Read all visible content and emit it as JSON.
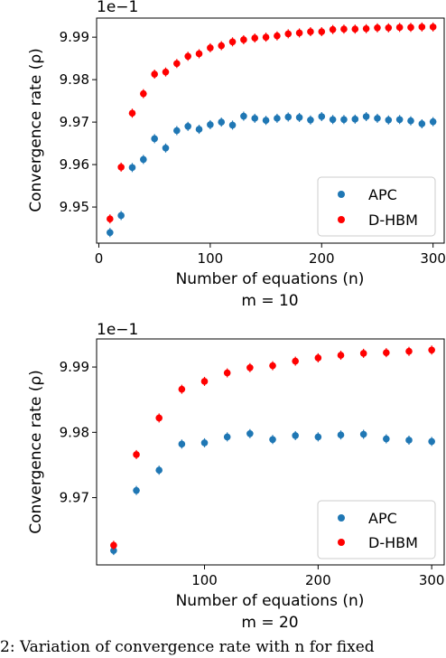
{
  "chart_data": [
    {
      "type": "scatter",
      "xlabel": "Number of equations (n)",
      "ylabel": "Convergence rate (ρ)",
      "subtitle": "m = 10",
      "exponent_label": "1e−1",
      "xlim": [
        -2,
        310
      ],
      "ylim": [
        9.9415,
        9.9945
      ],
      "xticks": [
        "0",
        "100",
        "200",
        "300"
      ],
      "yticks": [
        "9.95",
        "9.96",
        "9.97",
        "9.98",
        "9.99"
      ],
      "legend_position": "lower-right",
      "series": [
        {
          "name": "APC",
          "color": "#1f77b4",
          "x": [
            10,
            20,
            30,
            40,
            50,
            60,
            70,
            80,
            90,
            100,
            110,
            120,
            130,
            140,
            150,
            160,
            170,
            180,
            190,
            200,
            210,
            220,
            230,
            240,
            250,
            260,
            270,
            280,
            290,
            300
          ],
          "y": [
            9.944,
            9.948,
            9.9593,
            9.9612,
            9.9661,
            9.9639,
            9.968,
            9.969,
            9.9683,
            9.9694,
            9.97,
            9.9693,
            9.9714,
            9.9709,
            9.9704,
            9.9709,
            9.9712,
            9.9711,
            9.9705,
            9.9713,
            9.9706,
            9.9706,
            9.9707,
            9.9713,
            9.9709,
            9.9705,
            9.9706,
            9.9703,
            9.9696,
            9.9701
          ]
        },
        {
          "name": "D-HBM",
          "color": "#ff0000",
          "x": [
            10,
            20,
            30,
            40,
            50,
            60,
            70,
            80,
            90,
            100,
            110,
            120,
            130,
            140,
            150,
            160,
            170,
            180,
            190,
            200,
            210,
            220,
            230,
            240,
            250,
            260,
            270,
            280,
            290,
            300
          ],
          "y": [
            9.9472,
            9.9594,
            9.9721,
            9.9767,
            9.9813,
            9.9818,
            9.9838,
            9.9855,
            9.9861,
            9.9875,
            9.988,
            9.9889,
            9.9894,
            9.9898,
            9.99,
            9.9903,
            9.9908,
            9.991,
            9.9913,
            9.9913,
            9.9918,
            9.9919,
            9.9919,
            9.992,
            9.9922,
            9.9922,
            9.9923,
            9.9923,
            9.9924,
            9.9924
          ]
        }
      ]
    },
    {
      "type": "scatter",
      "xlabel": "Number of equations (n)",
      "ylabel": "Convergence rate (ρ)",
      "subtitle": "m = 20",
      "exponent_label": "1e−1",
      "xlim": [
        5,
        311
      ],
      "ylim": [
        9.9597,
        9.9943
      ],
      "xticks": [
        "100",
        "200",
        "300"
      ],
      "yticks": [
        "9.97",
        "9.98",
        "9.99"
      ],
      "legend_position": "lower-right",
      "series": [
        {
          "name": "APC",
          "color": "#1f77b4",
          "x": [
            20,
            40,
            60,
            80,
            100,
            120,
            140,
            160,
            180,
            200,
            220,
            240,
            260,
            280,
            300
          ],
          "y": [
            9.9619,
            9.9711,
            9.9742,
            9.9782,
            9.9784,
            9.9793,
            9.9798,
            9.9789,
            9.9795,
            9.9793,
            9.9796,
            9.9797,
            9.979,
            9.9788,
            9.9786
          ]
        },
        {
          "name": "D-HBM",
          "color": "#ff0000",
          "x": [
            20,
            40,
            60,
            80,
            100,
            120,
            140,
            160,
            180,
            200,
            220,
            240,
            260,
            280,
            300
          ],
          "y": [
            9.9627,
            9.9766,
            9.9822,
            9.9866,
            9.9878,
            9.9891,
            9.9899,
            9.9902,
            9.9909,
            9.9914,
            9.9918,
            9.9921,
            9.9922,
            9.9924,
            9.9926
          ]
        }
      ]
    }
  ],
  "caption": "2: Variation of convergence rate with n for fixed"
}
